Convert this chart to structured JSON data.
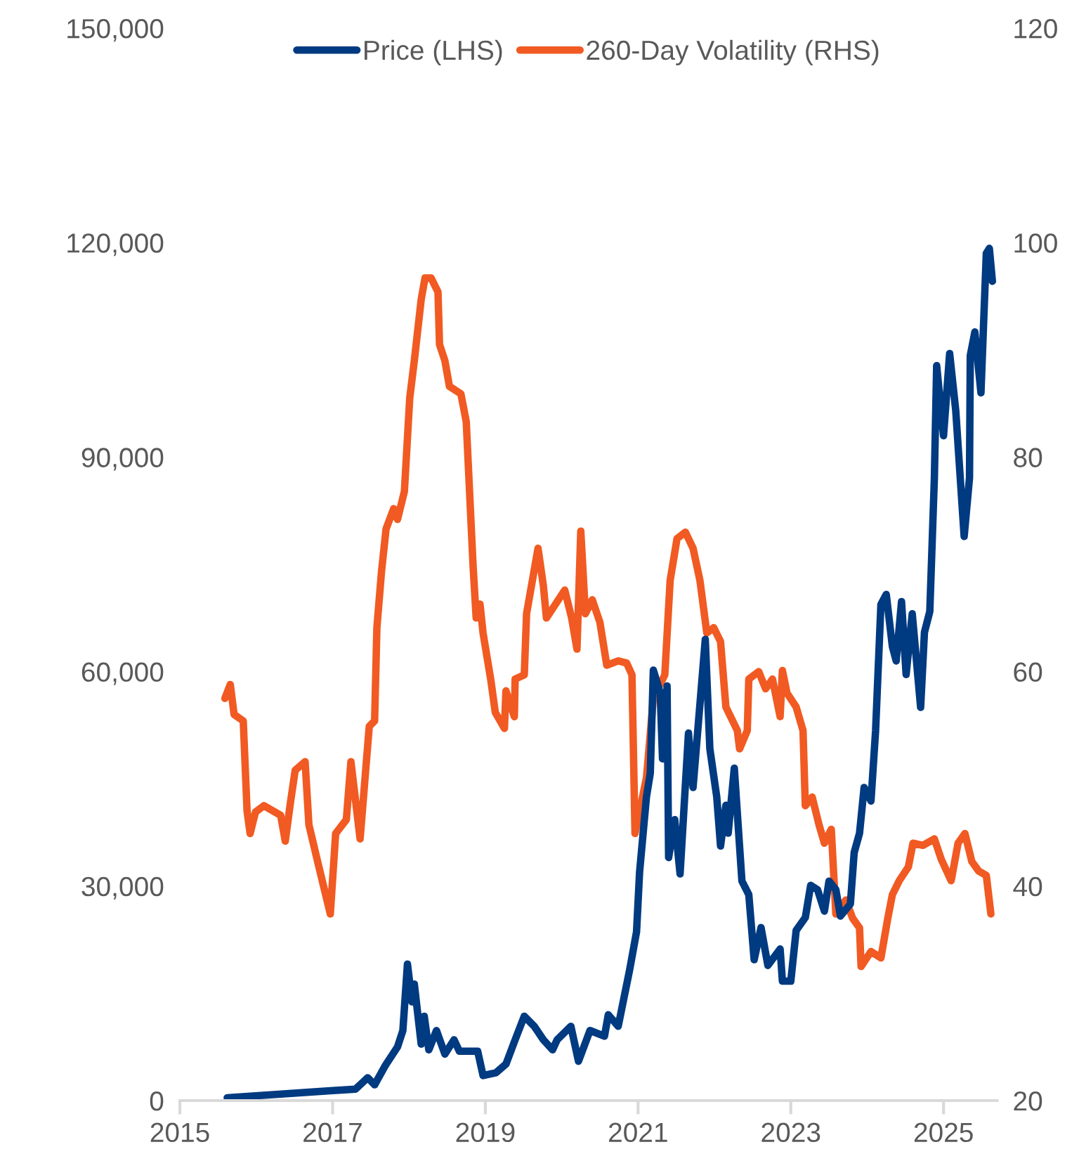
{
  "chart_data": {
    "type": "line",
    "legend": "top",
    "grid": false,
    "line_style": "solid",
    "marker": "none",
    "xlim": [
      2015,
      2025.7
    ],
    "xticks": [
      2015,
      2017,
      2019,
      2021,
      2023,
      2025
    ],
    "ylim": [
      0,
      150000
    ],
    "yticks": [
      {
        "value": 0,
        "label": "0"
      },
      {
        "value": 30000,
        "label": "30,000"
      },
      {
        "value": 60000,
        "label": "60,000"
      },
      {
        "value": 90000,
        "label": "90,000"
      },
      {
        "value": 120000,
        "label": "120,000"
      },
      {
        "value": 150000,
        "label": "150,000"
      }
    ],
    "y2lim": [
      20,
      120
    ],
    "y2ticks": [
      20,
      40,
      60,
      80,
      100,
      120
    ],
    "series": [
      {
        "name": "Price (LHS)",
        "color": "#003a80",
        "x": [
          2015.62,
          2017.0,
          2017.3,
          2017.46,
          2017.55,
          2017.69,
          2017.85,
          2017.92,
          2017.98,
          2018.04,
          2018.07,
          2018.16,
          2018.2,
          2018.26,
          2018.36,
          2018.47,
          2018.59,
          2018.66,
          2018.9,
          2018.97,
          2019.14,
          2019.27,
          2019.39,
          2019.51,
          2019.64,
          2019.76,
          2019.88,
          2019.94,
          2020.12,
          2020.22,
          2020.37,
          2020.56,
          2020.61,
          2020.74,
          2020.89,
          2020.98,
          2021.02,
          2021.11,
          2021.16,
          2021.2,
          2021.29,
          2021.32,
          2021.38,
          2021.4,
          2021.48,
          2021.55,
          2021.66,
          2021.72,
          2021.88,
          2021.94,
          2022.03,
          2022.08,
          2022.15,
          2022.18,
          2022.26,
          2022.36,
          2022.45,
          2022.52,
          2022.61,
          2022.7,
          2022.86,
          2022.89,
          2023.0,
          2023.07,
          2023.19,
          2023.26,
          2023.35,
          2023.44,
          2023.5,
          2023.59,
          2023.65,
          2023.78,
          2023.83,
          2023.9,
          2023.96,
          2024.05,
          2024.11,
          2024.18,
          2024.25,
          2024.33,
          2024.38,
          2024.45,
          2024.51,
          2024.59,
          2024.7,
          2024.75,
          2024.82,
          2024.88,
          2024.91,
          2025.0,
          2025.08,
          2025.16,
          2025.27,
          2025.34,
          2025.35,
          2025.41,
          2025.49,
          2025.52,
          2025.56,
          2025.6,
          2025.64
        ],
        "values": [
          400,
          1400,
          1600,
          3200,
          2200,
          4900,
          7500,
          9800,
          19100,
          13800,
          16300,
          7900,
          11800,
          7100,
          9800,
          6500,
          8500,
          6900,
          6900,
          3500,
          3900,
          5100,
          8500,
          11800,
          10400,
          8500,
          7100,
          8500,
          10400,
          5500,
          9800,
          9000,
          12000,
          10400,
          18300,
          23600,
          32000,
          42500,
          45800,
          60200,
          57000,
          47800,
          58000,
          34000,
          39300,
          31700,
          51400,
          43800,
          64500,
          49200,
          42500,
          35600,
          41300,
          37400,
          46500,
          30700,
          28800,
          19700,
          24200,
          18900,
          21200,
          16700,
          16700,
          23800,
          25600,
          30100,
          29500,
          26500,
          30700,
          29500,
          25800,
          27500,
          34700,
          37400,
          43800,
          41900,
          51700,
          69400,
          70800,
          63500,
          61500,
          69800,
          59600,
          68100,
          55000,
          65500,
          68400,
          87100,
          102800,
          93000,
          104500,
          96500,
          78900,
          87100,
          104200,
          107500,
          99000,
          107400,
          118500,
          119200,
          114600
        ]
      },
      {
        "name": "260-Day Volatility (RHS)",
        "color": "#f15a22",
        "axis": "y2",
        "x": [
          2015.59,
          2015.66,
          2015.71,
          2015.83,
          2015.88,
          2015.92,
          2015.99,
          2016.1,
          2016.32,
          2016.38,
          2016.45,
          2016.51,
          2016.64,
          2016.69,
          2016.82,
          2016.97,
          2017.04,
          2017.18,
          2017.24,
          2017.36,
          2017.48,
          2017.55,
          2017.58,
          2017.64,
          2017.7,
          2017.8,
          2017.85,
          2017.94,
          2018.01,
          2018.07,
          2018.16,
          2018.21,
          2018.29,
          2018.38,
          2018.4,
          2018.47,
          2018.53,
          2018.68,
          2018.75,
          2018.84,
          2018.88,
          2018.93,
          2018.97,
          2019.07,
          2019.13,
          2019.25,
          2019.27,
          2019.38,
          2019.39,
          2019.51,
          2019.54,
          2019.69,
          2019.76,
          2019.8,
          2020.04,
          2020.13,
          2020.2,
          2020.25,
          2020.31,
          2020.4,
          2020.5,
          2020.59,
          2020.74,
          2020.85,
          2020.92,
          2020.96,
          2021.11,
          2021.2,
          2021.35,
          2021.42,
          2021.51,
          2021.62,
          2021.72,
          2021.81,
          2021.9,
          2021.99,
          2022.08,
          2022.15,
          2022.3,
          2022.33,
          2022.43,
          2022.45,
          2022.58,
          2022.67,
          2022.76,
          2022.86,
          2022.89,
          2022.95,
          2023.07,
          2023.16,
          2023.19,
          2023.28,
          2023.37,
          2023.44,
          2023.53,
          2023.59,
          2023.72,
          2023.81,
          2023.9,
          2023.92,
          2024.05,
          2024.18,
          2024.27,
          2024.33,
          2024.42,
          2024.54,
          2024.6,
          2024.73,
          2024.88,
          2024.97,
          2025.1,
          2025.19,
          2025.28,
          2025.37,
          2025.46,
          2025.56,
          2025.62
        ],
        "values": [
          57.5,
          58.8,
          56.0,
          55.4,
          47.0,
          44.9,
          46.9,
          47.5,
          46.6,
          44.2,
          47.9,
          50.8,
          51.6,
          45.7,
          41.8,
          37.4,
          44.9,
          46.2,
          51.6,
          44.4,
          54.9,
          55.4,
          64.1,
          69.3,
          73.3,
          75.2,
          74.2,
          76.8,
          85.5,
          89.0,
          94.7,
          96.7,
          96.7,
          95.4,
          90.5,
          89.0,
          86.6,
          85.9,
          83.3,
          69.8,
          65.0,
          66.3,
          63.6,
          59.3,
          56.2,
          54.7,
          58.2,
          55.8,
          59.3,
          59.7,
          65.4,
          71.5,
          68.0,
          65.0,
          67.6,
          65.0,
          62.1,
          73.1,
          65.4,
          66.7,
          64.6,
          60.6,
          61.0,
          60.8,
          59.7,
          44.9,
          50.1,
          57.5,
          59.7,
          68.5,
          72.4,
          73.0,
          71.5,
          68.5,
          63.6,
          64.1,
          62.8,
          56.7,
          54.5,
          52.8,
          54.5,
          59.3,
          60.0,
          58.4,
          59.3,
          55.8,
          60.1,
          58.0,
          56.7,
          54.5,
          47.5,
          48.3,
          45.7,
          44.0,
          45.3,
          37.4,
          38.7,
          37.0,
          36.1,
          32.5,
          33.9,
          33.3,
          37.0,
          39.2,
          40.5,
          41.8,
          44.0,
          43.8,
          44.4,
          42.5,
          40.5,
          44.0,
          44.9,
          42.3,
          41.4,
          41.0,
          37.4
        ]
      }
    ]
  }
}
